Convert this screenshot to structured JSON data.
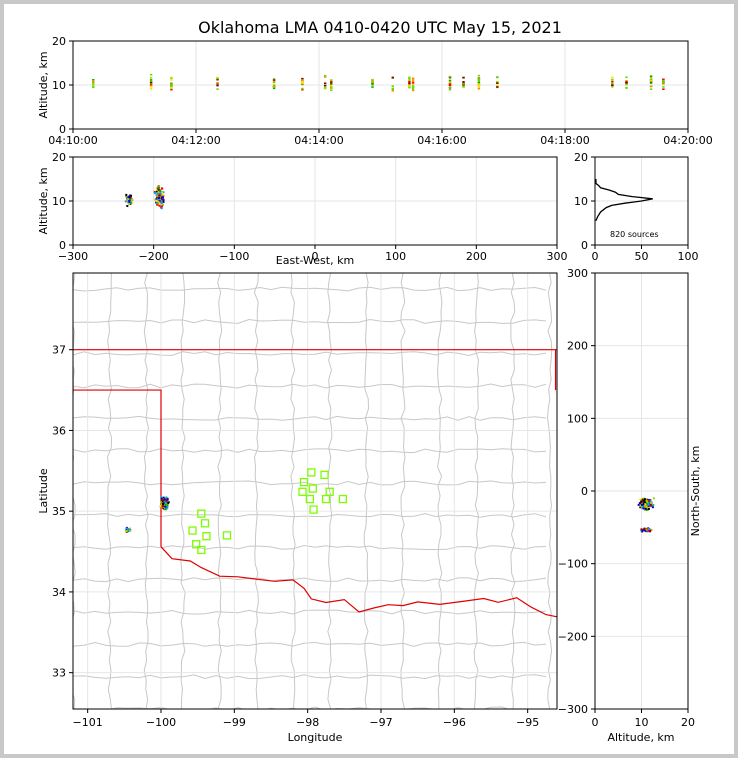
{
  "title": "Oklahoma LMA 0410-0420 UTC May 15, 2021",
  "colors": {
    "state_border": "#e00000",
    "county_border": "#c8c8c8",
    "stations": "#7CFC00",
    "grid": "#e6e6e6",
    "histogram": "#000000"
  },
  "chart_data": [
    {
      "id": "time-height",
      "type": "scatter",
      "ylabel": "Altitude, km",
      "ylim": [
        0,
        20
      ],
      "yticks": [
        "0",
        "10",
        "20"
      ],
      "xticks": [
        "04:10:00",
        "04:12:00",
        "04:14:00",
        "04:16:00",
        "04:18:00",
        "04:20:00"
      ],
      "xlim_minutes": [
        0,
        10
      ],
      "flash_times_minutes": [
        0.33,
        1.27,
        1.6,
        2.35,
        3.27,
        3.73,
        4.1,
        4.2,
        4.87,
        5.2,
        5.47,
        5.53,
        6.13,
        6.35,
        6.6,
        6.9,
        8.77,
        9.0,
        9.4,
        9.6
      ]
    },
    {
      "id": "east-west-altitude",
      "type": "scatter",
      "xlabel": "East-West, km",
      "ylabel": "Altitude, km",
      "xlim": [
        -300,
        300
      ],
      "ylim": [
        0,
        20
      ],
      "xticks": [
        "−300",
        "−200",
        "−100",
        "0",
        "100",
        "200",
        "300"
      ],
      "yticks": [
        "0",
        "10",
        "20"
      ],
      "clusters": [
        {
          "x": -230,
          "y": 10.5,
          "spread_x": 6,
          "spread_y": 2
        },
        {
          "x": -193,
          "y": 11,
          "spread_x": 8,
          "spread_y": 3
        }
      ]
    },
    {
      "id": "altitude-histogram",
      "type": "line",
      "xlim": [
        0,
        100
      ],
      "ylim": [
        0,
        20
      ],
      "xticks": [
        "0",
        "50",
        "100"
      ],
      "yticks": [
        "0",
        "10",
        "20"
      ],
      "annotation": "820 sources",
      "profile": [
        {
          "alt": 5.5,
          "count": 1
        },
        {
          "alt": 6.5,
          "count": 3
        },
        {
          "alt": 7.5,
          "count": 6
        },
        {
          "alt": 8.5,
          "count": 12
        },
        {
          "alt": 9.0,
          "count": 18
        },
        {
          "alt": 9.5,
          "count": 32
        },
        {
          "alt": 10.0,
          "count": 50
        },
        {
          "alt": 10.5,
          "count": 62
        },
        {
          "alt": 11.0,
          "count": 40
        },
        {
          "alt": 11.5,
          "count": 25
        },
        {
          "alt": 12.0,
          "count": 22
        },
        {
          "alt": 12.5,
          "count": 15
        },
        {
          "alt": 13.0,
          "count": 6
        },
        {
          "alt": 13.5,
          "count": 4
        },
        {
          "alt": 14.0,
          "count": 1
        },
        {
          "alt": 15.0,
          "count": 1
        }
      ]
    },
    {
      "id": "plan-view-map",
      "type": "scatter",
      "xlabel": "Longitude",
      "ylabel": "Latitude",
      "xlim": [
        -101.2,
        -94.6
      ],
      "ylim": [
        32.55,
        37.95
      ],
      "xticks": [
        "−101",
        "−100",
        "−99",
        "−98",
        "−97",
        "−96",
        "−95"
      ],
      "yticks": [
        "33",
        "34",
        "35",
        "36",
        "37"
      ],
      "clusters": [
        {
          "lon": -99.95,
          "lat": 35.1,
          "spread_lon": 0.07,
          "spread_lat": 0.1
        },
        {
          "lon": -100.45,
          "lat": 34.77,
          "spread_lon": 0.05,
          "spread_lat": 0.03
        }
      ],
      "stations": [
        [
          -97.95,
          35.48
        ],
        [
          -97.77,
          35.45
        ],
        [
          -98.05,
          35.36
        ],
        [
          -97.93,
          35.28
        ],
        [
          -98.07,
          35.24
        ],
        [
          -97.7,
          35.24
        ],
        [
          -97.97,
          35.15
        ],
        [
          -97.75,
          35.15
        ],
        [
          -97.52,
          35.15
        ],
        [
          -97.92,
          35.02
        ],
        [
          -99.45,
          34.97
        ],
        [
          -99.4,
          34.85
        ],
        [
          -99.57,
          34.76
        ],
        [
          -99.38,
          34.69
        ],
        [
          -99.1,
          34.7
        ],
        [
          -99.52,
          34.59
        ],
        [
          -99.45,
          34.52
        ]
      ]
    },
    {
      "id": "north-south-altitude",
      "type": "scatter",
      "xlabel": "Altitude, km",
      "ylabel": "North-South, km",
      "xlim": [
        0,
        20
      ],
      "ylim": [
        -300,
        300
      ],
      "xticks": [
        "0",
        "10",
        "20"
      ],
      "yticks": [
        "−300",
        "−200",
        "−100",
        "0",
        "100",
        "200",
        "300"
      ],
      "clusters": [
        {
          "alt": 11,
          "ns": -18,
          "spread_alt": 2,
          "spread_ns": 10
        },
        {
          "alt": 11,
          "ns": -54,
          "spread_alt": 2,
          "spread_ns": 3
        }
      ]
    }
  ]
}
